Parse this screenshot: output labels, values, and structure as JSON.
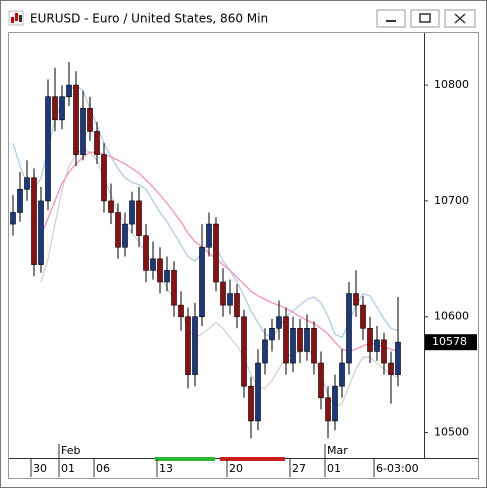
{
  "chart_data": {
    "type": "candlestick",
    "title": "EURUSD - Euro / United States, 860 Min",
    "categories": [
      null,
      null,
      null,
      "30",
      null,
      null,
      null,
      "01",
      null,
      null,
      null,
      null,
      "06",
      null,
      null,
      null,
      null,
      null,
      null,
      null,
      null,
      "13",
      null,
      null,
      null,
      null,
      null,
      null,
      null,
      null,
      null,
      "20",
      null,
      null,
      null,
      null,
      null,
      null,
      null,
      null,
      "27",
      null,
      null,
      null,
      null,
      "01",
      null,
      null,
      null,
      null,
      null,
      null,
      "6-03:00",
      null,
      null,
      null
    ],
    "month_labels": [
      null,
      null,
      null,
      null,
      null,
      null,
      null,
      "Feb",
      null,
      null,
      null,
      null,
      null,
      null,
      null,
      null,
      null,
      null,
      null,
      null,
      null,
      null,
      null,
      null,
      null,
      null,
      null,
      null,
      null,
      null,
      null,
      null,
      null,
      null,
      null,
      null,
      null,
      null,
      null,
      null,
      null,
      null,
      null,
      null,
      null,
      "Mar",
      null,
      null,
      null,
      null,
      null,
      null,
      null,
      null,
      null,
      null
    ],
    "candles": {
      "open": [
        10680,
        10690,
        10710,
        10720,
        10645,
        10700,
        10790,
        10770,
        10790,
        10800,
        10740,
        10780,
        10760,
        10740,
        10700,
        10690,
        10660,
        10680,
        10700,
        10670,
        10640,
        10650,
        10630,
        10640,
        10610,
        10600,
        10550,
        10600,
        10660,
        10680,
        10630,
        10610,
        10620,
        10600,
        10540,
        10510,
        10560,
        10580,
        10590,
        10600,
        10560,
        10590,
        10570,
        10590,
        10560,
        10530,
        10510,
        10540,
        10560,
        10620,
        10610,
        10590,
        10570,
        10580,
        10560,
        10550
      ],
      "high": [
        10705,
        10725,
        10735,
        10728,
        10712,
        10805,
        10815,
        10800,
        10820,
        10812,
        10795,
        10790,
        10768,
        10750,
        10715,
        10698,
        10690,
        10708,
        10712,
        10680,
        10665,
        10660,
        10652,
        10648,
        10622,
        10608,
        10612,
        10680,
        10690,
        10686,
        10642,
        10632,
        10628,
        10606,
        10548,
        10572,
        10590,
        10598,
        10614,
        10608,
        10600,
        10598,
        10602,
        10596,
        10570,
        10540,
        10550,
        10572,
        10630,
        10640,
        10618,
        10600,
        10592,
        10586,
        10570,
        10617
      ],
      "low": [
        10670,
        10682,
        10700,
        10635,
        10638,
        10692,
        10760,
        10762,
        10782,
        10730,
        10735,
        10752,
        10732,
        10690,
        10680,
        10650,
        10652,
        10672,
        10660,
        10630,
        10632,
        10620,
        10622,
        10600,
        10588,
        10538,
        10540,
        10592,
        10652,
        10622,
        10600,
        10602,
        10590,
        10530,
        10495,
        10502,
        10550,
        10570,
        10580,
        10550,
        10552,
        10560,
        10562,
        10550,
        10520,
        10495,
        10502,
        10530,
        10550,
        10600,
        10580,
        10560,
        10562,
        10550,
        10525,
        10540
      ],
      "close": [
        10690,
        10710,
        10720,
        10645,
        10700,
        10790,
        10770,
        10790,
        10800,
        10740,
        10780,
        10760,
        10740,
        10700,
        10690,
        10660,
        10680,
        10700,
        10670,
        10640,
        10650,
        10630,
        10640,
        10610,
        10600,
        10550,
        10600,
        10660,
        10680,
        10630,
        10610,
        10620,
        10600,
        10540,
        10510,
        10560,
        10580,
        10590,
        10600,
        10560,
        10590,
        10570,
        10590,
        10560,
        10530,
        10510,
        10540,
        10560,
        10620,
        10610,
        10590,
        10570,
        10580,
        10560,
        10550,
        10578
      ]
    },
    "up_color": "#1a3a80",
    "down_color": "#8c1010",
    "series": [
      {
        "color": "#a9c9ec",
        "values": [
          10750,
          10730,
          10715,
          10710,
          10720,
          10745,
          10770,
          10785,
          10795,
          10800,
          10795,
          10780,
          10765,
          10750,
          10738,
          10728,
          10720,
          10716,
          10714,
          10710,
          10700,
          10690,
          10682,
          10672,
          10662,
          10652,
          10648,
          10655,
          10665,
          10660,
          10648,
          10640,
          10630,
          10618,
          10605,
          10595,
          10585,
          10582,
          10590,
          10600,
          10605,
          10610,
          10615,
          10617,
          10612,
          10600,
          10585,
          10582,
          10595,
          10610,
          10620,
          10618,
          10608,
          10598,
          10590,
          10588
        ]
      },
      {
        "color": "#cfcfcf",
        "values": [
          null,
          null,
          null,
          null,
          10630,
          10650,
          10680,
          10710,
          10730,
          10740,
          10745,
          10742,
          10735,
          10720,
          10705,
          10690,
          10680,
          10672,
          10665,
          10655,
          10645,
          10635,
          10625,
          10615,
          10605,
          10590,
          10582,
          10585,
          10590,
          10595,
          10590,
          10582,
          10575,
          10565,
          10550,
          10540,
          10538,
          10545,
          10555,
          10565,
          10568,
          10570,
          10572,
          10565,
          10550,
          10532,
          10522,
          10525,
          10540,
          10555,
          10565,
          10565,
          10560,
          10555,
          10550,
          10548
        ]
      },
      {
        "color": "#ff88b8",
        "values": [
          null,
          null,
          null,
          null,
          10670,
          10685,
          10700,
          10715,
          10725,
          10732,
          10738,
          10742,
          10742,
          10740,
          10738,
          10735,
          10732,
          10728,
          10724,
          10718,
          10712,
          10705,
          10698,
          10690,
          10682,
          10672,
          10665,
          10660,
          10655,
          10650,
          10645,
          10640,
          10634,
          10628,
          10622,
          10618,
          10615,
          10612,
          10610,
          10607,
          10604,
          10600,
          10597,
          10594,
          10590,
          10585,
          10578,
          10572,
          10570,
          10572,
          10575,
          10577,
          10576,
          10574,
          10572,
          10570
        ]
      }
    ],
    "ylim": [
      10478,
      10845
    ],
    "yticks": [
      10500,
      10600,
      10700,
      10800
    ],
    "grid": false
  }
}
